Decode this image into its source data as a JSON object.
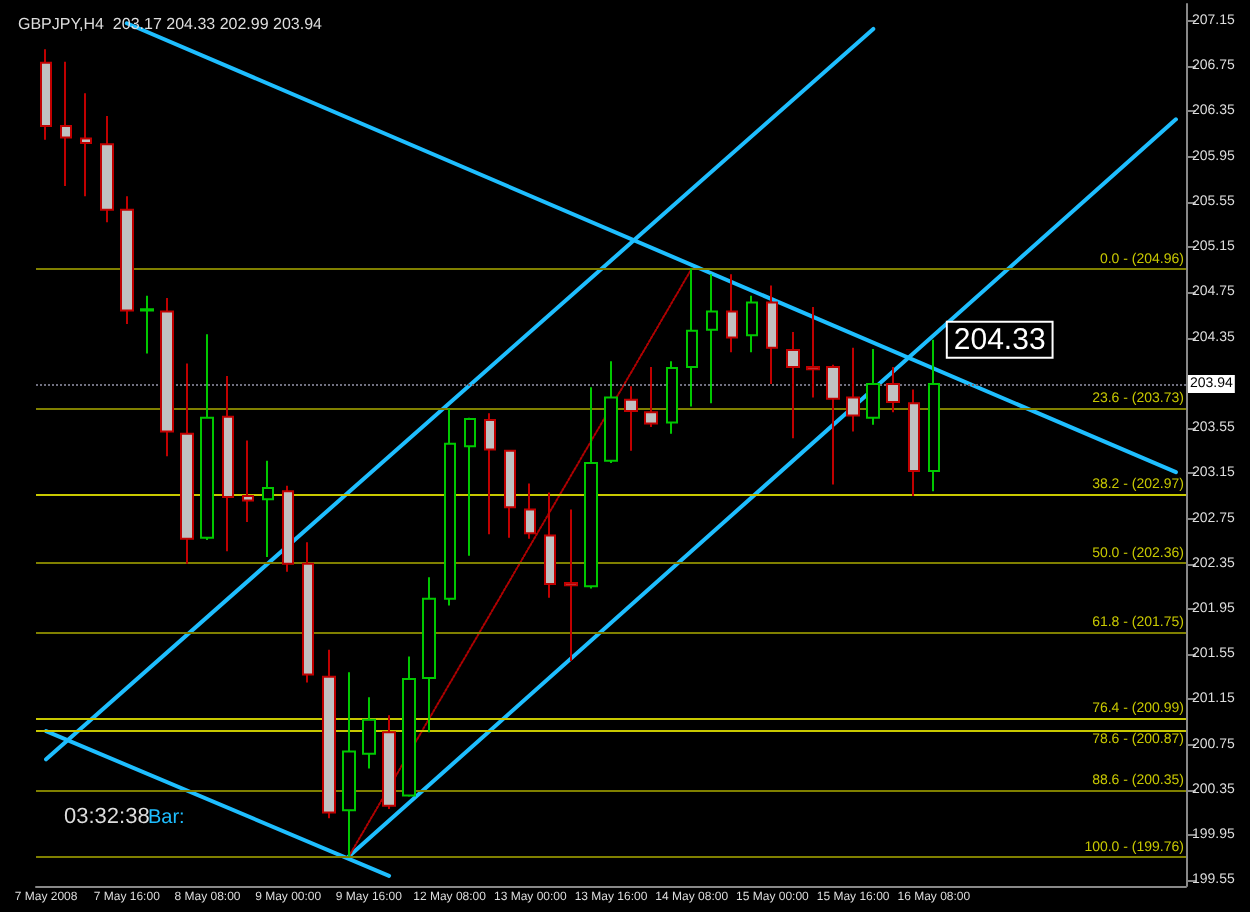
{
  "chart_data": {
    "type": "candlestick",
    "title": "GBPJPY,H4  203.17 204.33 202.99 203.94",
    "categories": [
      "7 May 2008",
      null,
      null,
      null,
      "7 May 16:00",
      null,
      null,
      null,
      "8 May 08:00",
      null,
      null,
      null,
      "9 May 00:00",
      null,
      null,
      null,
      "9 May 16:00",
      null,
      null,
      null,
      "12 May 08:00",
      null,
      null,
      null,
      "13 May 00:00",
      null,
      null,
      null,
      "13 May 16:00",
      null,
      null,
      null,
      "14 May 08:00",
      null,
      null,
      null,
      "15 May 00:00",
      null,
      null,
      null,
      "15 May 16:00",
      null,
      null,
      null,
      "16 May 08:00",
      null,
      null,
      null,
      null,
      null,
      null,
      null,
      null,
      null,
      null,
      null,
      null
    ],
    "ohlc": [
      [
        206.78,
        206.9,
        206.1,
        206.22
      ],
      [
        206.22,
        206.79,
        205.69,
        206.12
      ],
      [
        206.11,
        206.51,
        205.6,
        206.07
      ],
      [
        206.06,
        206.31,
        205.37,
        205.48
      ],
      [
        205.48,
        205.6,
        204.47,
        204.59
      ],
      [
        204.59,
        204.72,
        204.21,
        204.6
      ],
      [
        204.58,
        204.7,
        203.3,
        203.52
      ],
      [
        203.5,
        204.12,
        202.35,
        202.57
      ],
      [
        202.58,
        204.38,
        202.56,
        203.64
      ],
      [
        203.65,
        204.01,
        202.46,
        202.94
      ],
      [
        202.95,
        203.44,
        202.72,
        202.91
      ],
      [
        202.92,
        203.26,
        202.41,
        203.02
      ],
      [
        202.99,
        203.04,
        202.28,
        202.35
      ],
      [
        202.35,
        202.54,
        201.3,
        201.37
      ],
      [
        201.35,
        201.59,
        200.1,
        200.15
      ],
      [
        200.17,
        201.39,
        199.76,
        200.69
      ],
      [
        200.67,
        201.17,
        200.54,
        200.97
      ],
      [
        200.86,
        201.01,
        200.18,
        200.21
      ],
      [
        200.3,
        201.53,
        200.29,
        201.33
      ],
      [
        201.34,
        202.23,
        200.86,
        202.04
      ],
      [
        202.04,
        203.72,
        201.98,
        203.41
      ],
      [
        203.39,
        203.64,
        202.42,
        203.63
      ],
      [
        203.62,
        203.68,
        202.61,
        203.36
      ],
      [
        203.35,
        203.35,
        202.58,
        202.85
      ],
      [
        202.83,
        203.06,
        202.57,
        202.62
      ],
      [
        202.6,
        202.98,
        202.05,
        202.17
      ],
      [
        202.18,
        202.83,
        201.49,
        202.16
      ],
      [
        202.15,
        203.91,
        202.13,
        203.24
      ],
      [
        203.26,
        204.14,
        203.24,
        203.82
      ],
      [
        203.8,
        203.92,
        203.35,
        203.7
      ],
      [
        203.69,
        204.09,
        203.56,
        203.59
      ],
      [
        203.6,
        204.14,
        203.5,
        204.08
      ],
      [
        204.09,
        204.96,
        203.74,
        204.41
      ],
      [
        204.42,
        204.91,
        203.77,
        204.58
      ],
      [
        204.58,
        204.91,
        204.22,
        204.35
      ],
      [
        204.37,
        204.72,
        204.22,
        204.66
      ],
      [
        204.66,
        204.81,
        203.94,
        204.26
      ],
      [
        204.24,
        204.4,
        203.46,
        204.09
      ],
      [
        204.09,
        204.62,
        203.82,
        204.07
      ],
      [
        204.09,
        204.11,
        203.05,
        203.81
      ],
      [
        203.82,
        204.26,
        203.52,
        203.66
      ],
      [
        203.64,
        204.25,
        203.58,
        203.94
      ],
      [
        203.94,
        204.09,
        203.69,
        203.78
      ],
      [
        203.77,
        203.89,
        202.95,
        203.17
      ],
      [
        203.17,
        204.33,
        202.99,
        203.94
      ],
      null,
      null,
      null,
      null,
      null,
      null,
      null,
      null,
      null,
      null,
      null,
      null
    ],
    "colors": [
      "#c0c0c0",
      "#c0c0c0",
      "#c0c0c0",
      "#c0c0c0",
      "#c0c0c0",
      "#00c800",
      "#c0c0c0",
      "#c0c0c0",
      "#00c800",
      "#c0c0c0",
      "#c0c0c0",
      "#00c800",
      "#c0c0c0",
      "#c0c0c0",
      "#c0c0c0",
      "#00c800",
      "#00c800",
      "#c0c0c0",
      "#00c800",
      "#00c800",
      "#00c800",
      "#00c800",
      "#c0c0c0",
      "#c0c0c0",
      "#c0c0c0",
      "#c0c0c0",
      "#c0c0c0",
      "#00c800",
      "#00c800",
      "#c0c0c0",
      "#c0c0c0",
      "#00c800",
      "#00c800",
      "#00c800",
      "#c0c0c0",
      "#00c800",
      "#c0c0c0",
      "#c0c0c0",
      "#c0c0c0",
      "#c0c0c0",
      "#c0c0c0",
      "#00c800",
      "#c0c0c0",
      "#c0c0c0",
      "#00c800",
      null,
      null,
      null,
      null,
      null,
      null,
      null,
      null,
      null,
      null,
      null,
      null
    ],
    "series": [
      {
        "type": "line",
        "color": "#1ebeff",
        "line_style": "solid",
        "values": [
          null,
          null,
          null,
          null,
          207.13,
          null,
          null,
          null,
          null,
          null,
          null,
          null,
          null,
          null,
          null,
          null,
          null,
          null,
          null,
          null,
          null,
          null,
          null,
          null,
          null,
          null,
          null,
          null,
          null,
          null,
          null,
          null,
          null,
          null,
          null,
          null,
          null,
          null,
          null,
          null,
          null,
          null,
          null,
          null,
          null,
          null,
          null,
          null,
          null,
          null,
          null,
          null,
          null,
          null,
          null,
          null,
          203.16
        ]
      },
      {
        "type": "line",
        "color": "#1ebeff",
        "line_style": "solid",
        "values": [
          200.87,
          null,
          null,
          null,
          null,
          null,
          null,
          null,
          null,
          null,
          null,
          null,
          null,
          null,
          null,
          null,
          null,
          199.59,
          null,
          null,
          null,
          null,
          null,
          null,
          null,
          null,
          null,
          null,
          null,
          null,
          null,
          null,
          null,
          null,
          null,
          null,
          null,
          null,
          null,
          null,
          null,
          null,
          null,
          null,
          null,
          null,
          null,
          null,
          null,
          null,
          null,
          null,
          null,
          null,
          null,
          null,
          null
        ]
      },
      {
        "type": "line",
        "color": "#1ebeff",
        "line_style": "solid",
        "values": [
          200.62,
          null,
          null,
          null,
          null,
          null,
          null,
          null,
          null,
          null,
          null,
          null,
          null,
          null,
          null,
          null,
          null,
          null,
          null,
          null,
          null,
          null,
          null,
          null,
          null,
          null,
          null,
          null,
          null,
          null,
          null,
          null,
          null,
          null,
          null,
          null,
          null,
          null,
          null,
          null,
          null,
          207.08,
          null,
          null,
          null,
          null,
          null,
          null,
          null,
          null,
          null,
          null,
          null,
          null,
          null,
          null,
          null
        ]
      },
      {
        "type": "line",
        "color": "#1ebeff",
        "line_style": "solid",
        "values": [
          null,
          null,
          null,
          null,
          null,
          null,
          null,
          null,
          null,
          null,
          null,
          null,
          null,
          null,
          null,
          199.76,
          null,
          null,
          null,
          null,
          null,
          null,
          null,
          null,
          null,
          null,
          null,
          null,
          null,
          null,
          null,
          null,
          null,
          null,
          null,
          null,
          null,
          null,
          null,
          null,
          null,
          null,
          null,
          null,
          null,
          null,
          null,
          null,
          null,
          null,
          null,
          null,
          null,
          null,
          null,
          null,
          206.28
        ]
      },
      {
        "type": "line",
        "color": "#b00000",
        "line_style": "dotted",
        "values": [
          null,
          null,
          null,
          null,
          null,
          null,
          null,
          null,
          null,
          null,
          null,
          null,
          null,
          null,
          null,
          199.76,
          null,
          null,
          null,
          null,
          null,
          null,
          null,
          null,
          null,
          null,
          null,
          null,
          null,
          null,
          null,
          null,
          204.96,
          null,
          null,
          null,
          null,
          null,
          null,
          null,
          null,
          null,
          null,
          null,
          null,
          null,
          null,
          null,
          null,
          null,
          null,
          null,
          null,
          null,
          null,
          null,
          null
        ]
      }
    ],
    "ylim": [
      199.5,
      207.3
    ],
    "yticks": [
      199.55,
      199.95,
      200.35,
      200.75,
      201.15,
      201.55,
      201.95,
      202.35,
      202.75,
      203.15,
      203.55,
      204.35,
      204.75,
      205.15,
      205.55,
      205.95,
      206.35,
      206.75,
      207.15
    ],
    "ref_lines": [
      {
        "axis": "y",
        "value": 204.96,
        "label": "0.0 - (204.96)",
        "color": "#808000"
      },
      {
        "axis": "y",
        "value": 203.73,
        "label": "23.6 - (203.73)",
        "color": "#808000"
      },
      {
        "axis": "y",
        "value": 202.97,
        "label": "38.2 - (202.97)",
        "color": "#c8c800"
      },
      {
        "axis": "y",
        "value": 202.36,
        "label": "50.0 - (202.36)",
        "color": "#808000"
      },
      {
        "axis": "y",
        "value": 201.75,
        "label": "61.8 - (201.75)",
        "color": "#808000"
      },
      {
        "axis": "y",
        "value": 200.99,
        "label": "76.4 - (200.99)",
        "color": "#c8c800"
      },
      {
        "axis": "y",
        "value": 200.87,
        "label": "78.6 - (200.87)",
        "color": "#c8c800"
      },
      {
        "axis": "y",
        "value": 200.35,
        "label": "88.6 - (200.35)",
        "color": "#808000"
      },
      {
        "axis": "y",
        "value": 199.76,
        "label": "100.0 - (199.76)",
        "color": "#808000"
      },
      {
        "axis": "y",
        "value": 203.94,
        "label": "203.94",
        "color": "#707080",
        "line_style": "dotted"
      }
    ],
    "annotations": [
      {
        "text": "204.33",
        "x": "16 May 08:00",
        "y": 204.33
      },
      "03:32:38",
      "Bar:"
    ],
    "grid": false
  }
}
